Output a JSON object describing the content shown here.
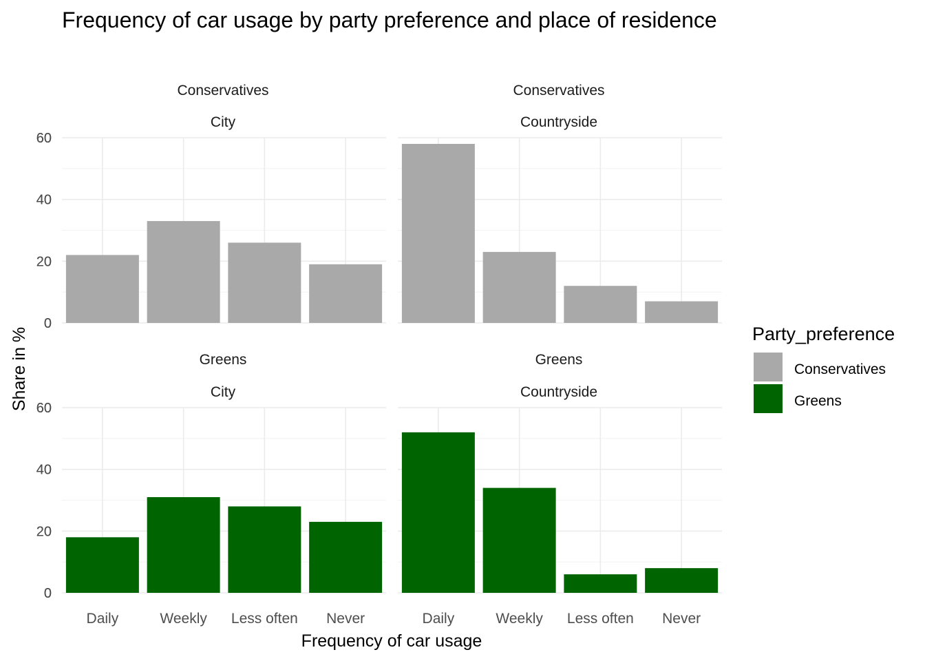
{
  "chart_data": {
    "type": "bar",
    "title": "Frequency of car usage by party preference and place of residence",
    "xlabel": "Frequency of car usage",
    "ylabel": "Share in %",
    "ylim": [
      0,
      60
    ],
    "yticks": [
      "0",
      "20",
      "40",
      "60"
    ],
    "categories": [
      "Daily",
      "Weekly",
      "Less often",
      "Never"
    ],
    "grid": true,
    "legend": {
      "title": "Party_preference",
      "position": "right",
      "items": [
        {
          "label": "Conservatives",
          "color": "#a9a9a9"
        },
        {
          "label": "Greens",
          "color": "#006400"
        }
      ]
    },
    "panels": [
      {
        "party": "Conservatives",
        "residence": "City",
        "color": "#a9a9a9",
        "values": [
          22,
          33,
          26,
          19
        ]
      },
      {
        "party": "Conservatives",
        "residence": "Countryside",
        "color": "#a9a9a9",
        "values": [
          58,
          23,
          12,
          7
        ]
      },
      {
        "party": "Greens",
        "residence": "City",
        "color": "#006400",
        "values": [
          18,
          31,
          28,
          23
        ]
      },
      {
        "party": "Greens",
        "residence": "Countryside",
        "color": "#006400",
        "values": [
          52,
          34,
          6,
          8
        ]
      }
    ]
  }
}
